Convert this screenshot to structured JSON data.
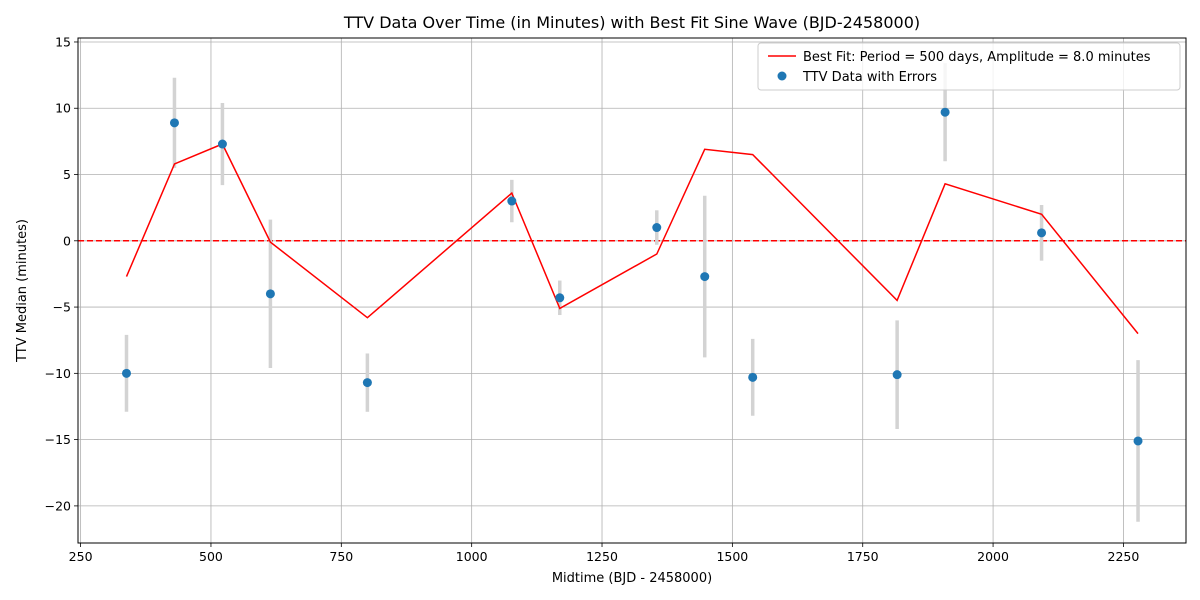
{
  "chart_data": {
    "type": "scatter",
    "title": "TTV Data Over Time (in Minutes) with Best Fit Sine Wave (BJD-2458000)",
    "xlabel": "Midtime (BJD - 2458000)",
    "ylabel": "TTV Median (minutes)",
    "xlim": [
      245,
      2370
    ],
    "ylim": [
      -22.8,
      15.3
    ],
    "xticks": [
      250,
      500,
      750,
      1000,
      1250,
      1500,
      1750,
      2000,
      2250
    ],
    "yticks": [
      -20,
      -15,
      -10,
      -5,
      0,
      5,
      10,
      15
    ],
    "xtick_labels": [
      "250",
      "500",
      "750",
      "1000",
      "1250",
      "1500",
      "1750",
      "2000",
      "2250"
    ],
    "ytick_labels": [
      "−20",
      "−15",
      "−10",
      "−5",
      "0",
      "5",
      "10",
      "15"
    ],
    "grid": true,
    "legend_position": "top-right",
    "zero_line": {
      "y": 0,
      "color": "#ff0000",
      "style": "dashed"
    },
    "series": [
      {
        "name": "Best Fit: Period = 500 days, Amplitude = 8.0 minutes",
        "kind": "line",
        "color": "#ff0000",
        "x": [
          338,
          430,
          522,
          614,
          800,
          1077,
          1169,
          1355,
          1447,
          1539,
          1816,
          1908,
          2093,
          2278
        ],
        "y": [
          -2.7,
          5.8,
          7.3,
          -0.1,
          -5.8,
          3.6,
          -5.1,
          -1.0,
          6.9,
          6.5,
          -4.5,
          4.3,
          2.0,
          -7.0
        ]
      },
      {
        "name": "TTV Data with Errors",
        "kind": "scatter",
        "color": "#1f77b4",
        "error_color": "#d3d3d3",
        "x": [
          338,
          430,
          522,
          614,
          800,
          1077,
          1169,
          1355,
          1447,
          1539,
          1816,
          1908,
          2093,
          2278
        ],
        "y": [
          -10.0,
          8.9,
          7.3,
          -4.0,
          -10.7,
          3.0,
          -4.3,
          1.0,
          -2.7,
          -10.3,
          -10.1,
          9.7,
          0.6,
          -15.1
        ],
        "yerr": [
          2.9,
          3.4,
          3.1,
          5.6,
          2.2,
          1.6,
          1.3,
          1.3,
          6.1,
          2.9,
          4.1,
          3.7,
          2.1,
          6.1
        ]
      }
    ]
  }
}
